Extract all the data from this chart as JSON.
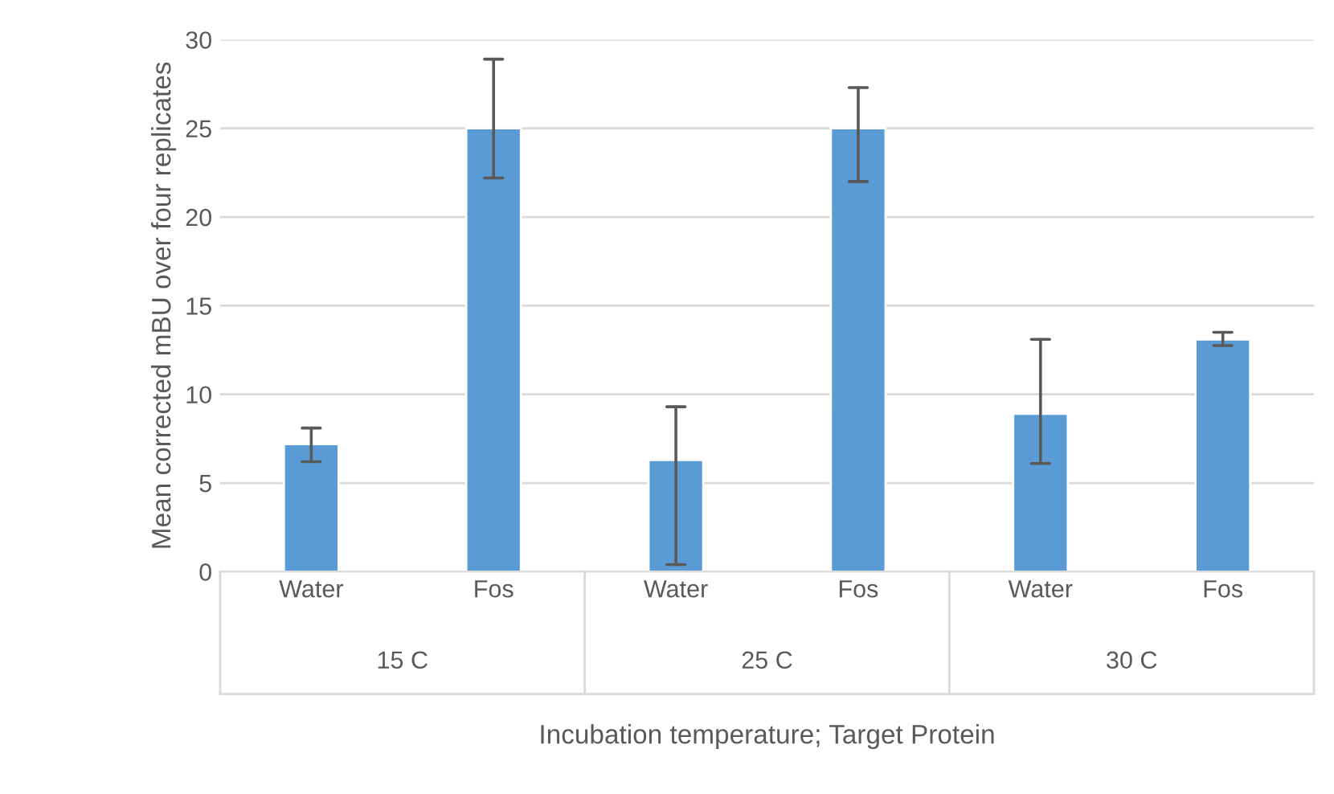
{
  "chart_data": {
    "type": "bar",
    "categories": [
      "Water",
      "Fos",
      "Water",
      "Fos",
      "Water",
      "Fos"
    ],
    "values": [
      7.2,
      25.0,
      6.3,
      25.0,
      8.9,
      13.1
    ],
    "errors": [
      [
        6.2,
        8.1
      ],
      [
        22.2,
        28.9
      ],
      [
        0.4,
        9.3
      ],
      [
        22.0,
        27.3
      ],
      [
        6.1,
        13.1
      ],
      [
        12.75,
        13.5
      ]
    ],
    "color": "#5b9bd5",
    "xlabel": "Incubation temperature; Target Protein",
    "ylabel": "Mean corrected mBU over four replicates",
    "annotations": [
      "15 C",
      "25 C",
      "30 C"
    ],
    "ylim": [
      0,
      30
    ],
    "yticks": [
      0,
      5,
      10,
      15,
      20,
      25,
      30
    ],
    "grid": "y",
    "legend": false
  }
}
